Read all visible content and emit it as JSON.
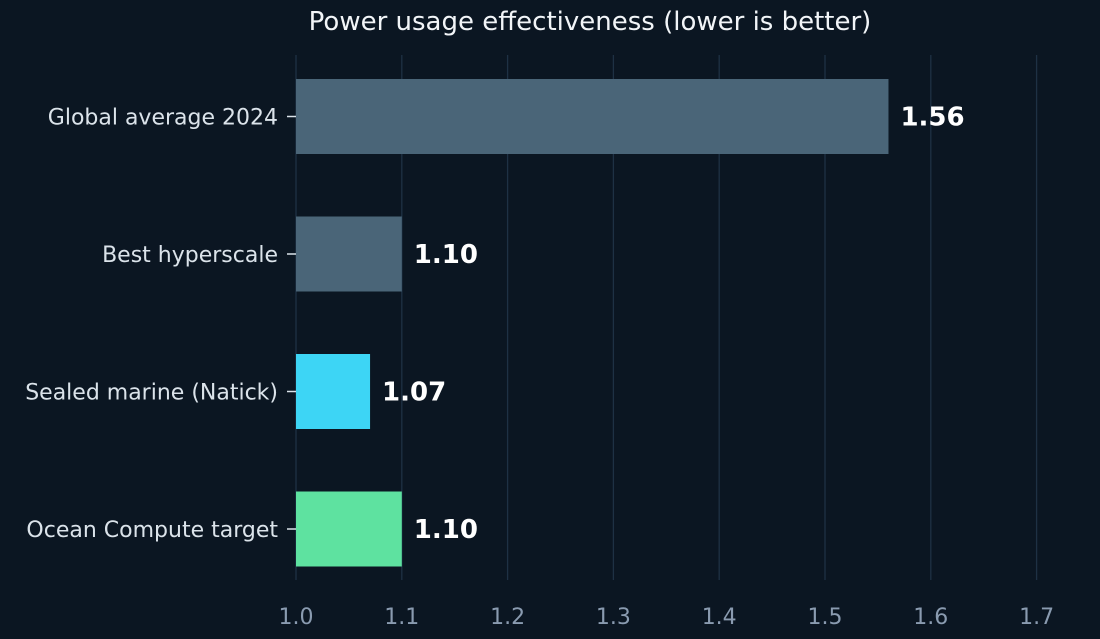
{
  "chart_data": {
    "type": "bar",
    "orientation": "horizontal",
    "title": "Power usage effectiveness (lower is better)",
    "xlabel": "",
    "ylabel": "",
    "xlim": [
      1.0,
      1.75
    ],
    "x_ticks": [
      1.0,
      1.1,
      1.2,
      1.3,
      1.4,
      1.5,
      1.6,
      1.7
    ],
    "x_tick_labels": [
      "1.0",
      "1.1",
      "1.2",
      "1.3",
      "1.4",
      "1.5",
      "1.6",
      "1.7"
    ],
    "grid": "vertical",
    "categories": [
      "Global average 2024",
      "Best hyperscale",
      "Sealed marine (Natick)",
      "Ocean Compute target"
    ],
    "values": [
      1.56,
      1.1,
      1.07,
      1.1
    ],
    "value_labels": [
      "1.56",
      "1.10",
      "1.07",
      "1.10"
    ],
    "colors": [
      "#4a6578",
      "#4a6578",
      "#3dd5f5",
      "#5ee2a0"
    ],
    "background": "#0b1622"
  }
}
